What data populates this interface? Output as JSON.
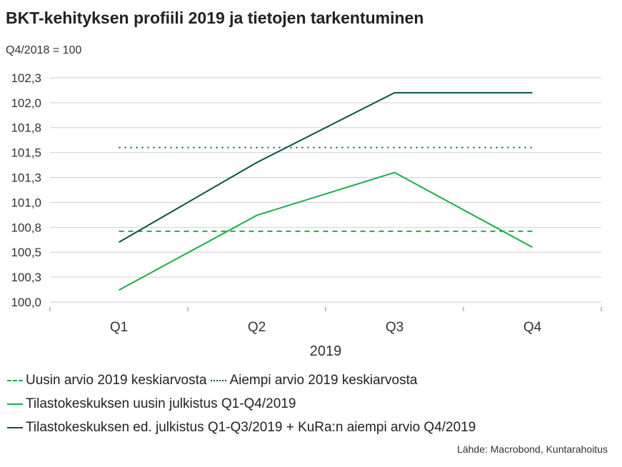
{
  "chart_data": {
    "type": "line",
    "title": "BKT-kehityksen profiili 2019 ja tietojen tarkentuminen",
    "ylabel": "Q4/2018 = 100",
    "xlabel": "2019",
    "categories": [
      "Q1",
      "Q2",
      "Q3",
      "Q4"
    ],
    "ylim": [
      99.95,
      102.4
    ],
    "yticks": [
      100.0,
      100.25,
      100.5,
      100.75,
      101.0,
      101.25,
      101.5,
      101.75,
      102.0,
      102.25
    ],
    "ytick_labels": [
      "100,0",
      "100,3",
      "100,5",
      "100,8",
      "101,0",
      "101,3",
      "101,5",
      "101,8",
      "102,0",
      "102,3"
    ],
    "grid": true,
    "legend_position": "bottom",
    "series": [
      {
        "name": "Uusin arvio 2019 keskiarvosta",
        "style": "dashed",
        "color": "#1aae4b",
        "values": [
          100.71,
          100.71,
          100.71,
          100.71
        ]
      },
      {
        "name": "Aiempi arvio 2019 keskiarvosta",
        "style": "dotted",
        "color": "#0b5244",
        "values": [
          101.55,
          101.55,
          101.55,
          101.55
        ]
      },
      {
        "name": "Tilastokeskuksen uusin julkistus Q1-Q4/2019",
        "style": "solid",
        "color": "#1aae4b",
        "values": [
          100.12,
          100.87,
          101.3,
          100.55
        ]
      },
      {
        "name": "Tilastokeskuksen ed. julkistus Q1-Q3/2019 + KuRa:n aiempi arvio Q4/2019",
        "style": "solid",
        "color": "#0b5244",
        "values": [
          100.6,
          101.4,
          102.1,
          102.1
        ]
      }
    ]
  },
  "source": "Lähde: Macrobond, Kuntarahoitus"
}
